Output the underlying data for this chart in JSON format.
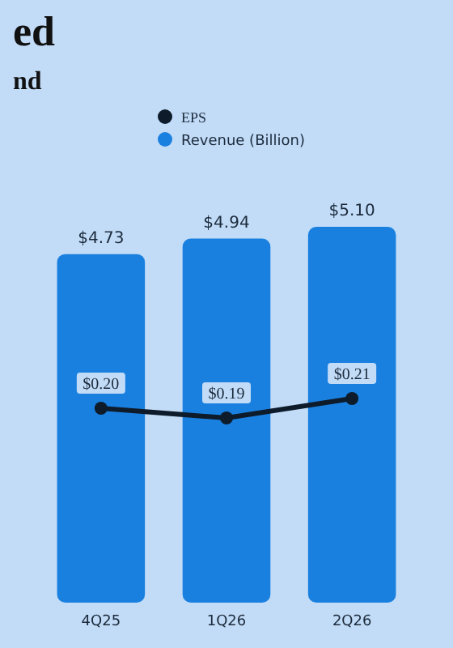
{
  "chart_data": {
    "type": "bar",
    "title": "ed",
    "subtitle": "nd",
    "categories": [
      "4Q25",
      "1Q26",
      "2Q26"
    ],
    "series": [
      {
        "name": "EPS",
        "type": "line",
        "axis": "y2",
        "color": "#0d1b2a",
        "values": [
          0.2,
          0.19,
          0.21
        ],
        "value_labels": [
          "$0.20",
          "$0.19",
          "$0.21"
        ]
      },
      {
        "name": "Revenue (Billion)",
        "color": "#1a80e0",
        "values": [
          4.73,
          4.94,
          5.1
        ],
        "value_labels": [
          "$4.73",
          "$4.94",
          "$5.10"
        ]
      }
    ],
    "legend": "top",
    "marker": "circle"
  }
}
